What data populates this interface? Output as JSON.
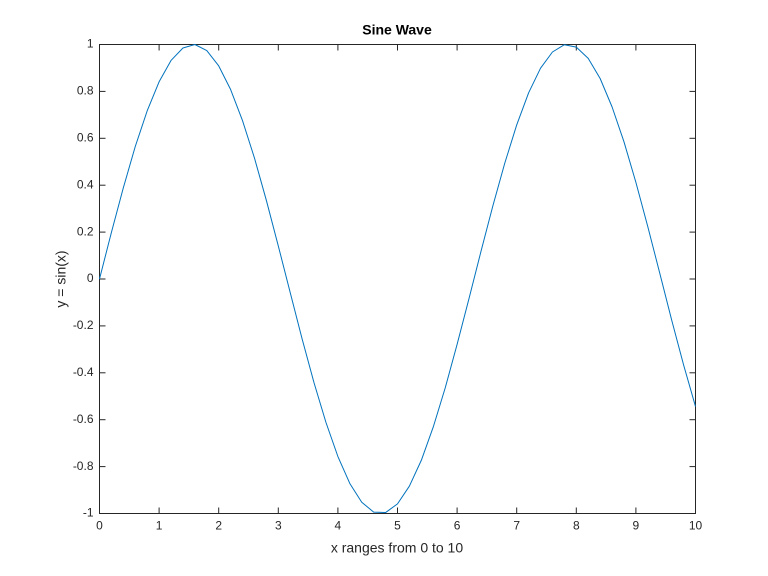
{
  "chart_data": {
    "type": "line",
    "title": "Sine Wave",
    "xlabel": "x ranges from 0 to 10",
    "ylabel": "y = sin(x)",
    "x": [
      0,
      0.2,
      0.4,
      0.6,
      0.8,
      1,
      1.2,
      1.4,
      1.6,
      1.8,
      2,
      2.2,
      2.4,
      2.6,
      2.8,
      3,
      3.2,
      3.4,
      3.6,
      3.8,
      4,
      4.2,
      4.4,
      4.6,
      4.8,
      5,
      5.2,
      5.4,
      5.6,
      5.8,
      6,
      6.2,
      6.4,
      6.6,
      6.8,
      7,
      7.2,
      7.4,
      7.6,
      7.8,
      8,
      8.2,
      8.4,
      8.6,
      8.8,
      9,
      9.2,
      9.4,
      9.6,
      9.8,
      10
    ],
    "values": [
      0,
      0.199,
      0.389,
      0.565,
      0.717,
      0.841,
      0.932,
      0.985,
      1.0,
      0.974,
      0.909,
      0.808,
      0.675,
      0.516,
      0.335,
      0.141,
      -0.058,
      -0.256,
      -0.443,
      -0.612,
      -0.757,
      -0.872,
      -0.952,
      -0.994,
      -0.996,
      -0.959,
      -0.883,
      -0.773,
      -0.631,
      -0.465,
      -0.279,
      -0.083,
      0.117,
      0.312,
      0.494,
      0.657,
      0.794,
      0.899,
      0.968,
      0.999,
      0.989,
      0.941,
      0.855,
      0.734,
      0.585,
      0.412,
      0.223,
      0.025,
      -0.175,
      -0.366,
      -0.544
    ],
    "color": "#0072bd",
    "xlim": [
      0,
      10
    ],
    "xticks": [
      0,
      1,
      2,
      3,
      4,
      5,
      6,
      7,
      8,
      9,
      10
    ],
    "ylim": [
      -1,
      1
    ],
    "yticks": [
      -1,
      -0.8,
      -0.6,
      -0.4,
      -0.2,
      0,
      0.2,
      0.4,
      0.6,
      0.8,
      1
    ],
    "grid": false
  }
}
